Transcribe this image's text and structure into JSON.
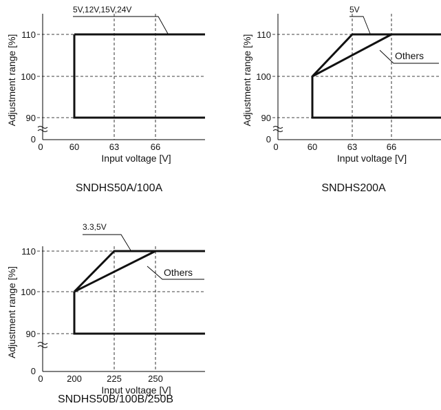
{
  "chart_data": [
    {
      "type": "line",
      "caption": "SNDHS50A/100A",
      "xlabel": "Input voltage [V]",
      "ylabel": "Adjustment range [%]",
      "x_ticks": [
        0,
        60,
        63,
        66
      ],
      "y_ticks": [
        0,
        90,
        100,
        110
      ],
      "dashed_x": [
        63,
        66
      ],
      "dashed_y": [
        90,
        100,
        110
      ],
      "series": [
        {
          "name": "5V,12V,15V,24V",
          "points": [
            [
              60,
              110
            ],
            [
              70,
              110
            ]
          ]
        }
      ],
      "boundary": [
        [
          70,
          90
        ],
        [
          60,
          90
        ],
        [
          60,
          110
        ]
      ]
    },
    {
      "type": "line",
      "caption": "SNDHS200A",
      "xlabel": "Input voltage [V]",
      "ylabel": "Adjustment range [%]",
      "x_ticks": [
        0,
        60,
        63,
        66
      ],
      "y_ticks": [
        0,
        90,
        100,
        110
      ],
      "dashed_x": [
        63,
        66
      ],
      "dashed_y": [
        90,
        100,
        110
      ],
      "series": [
        {
          "name": "5V",
          "points": [
            [
              60,
              100
            ],
            [
              63,
              110
            ],
            [
              70,
              110
            ]
          ]
        },
        {
          "name": "Others",
          "points": [
            [
              60,
              100
            ],
            [
              66,
              110
            ]
          ]
        }
      ],
      "boundary": [
        [
          70,
          90
        ],
        [
          60,
          90
        ],
        [
          60,
          100
        ]
      ]
    },
    {
      "type": "line",
      "caption": "SNDHS50B/100B/250B",
      "xlabel": "Input voltage [V]",
      "ylabel": "Adjustment range [%]",
      "x_ticks": [
        0,
        200,
        225,
        250
      ],
      "y_ticks": [
        0,
        90,
        100,
        110
      ],
      "dashed_x": [
        225,
        250
      ],
      "dashed_y": [
        90,
        100,
        110
      ],
      "series": [
        {
          "name": "3.3,5V",
          "points": [
            [
              200,
              100
            ],
            [
              225,
              110
            ],
            [
              280,
              110
            ]
          ]
        },
        {
          "name": "Others",
          "points": [
            [
              200,
              100
            ],
            [
              250,
              110
            ]
          ]
        }
      ],
      "boundary": [
        [
          280,
          90
        ],
        [
          200,
          90
        ],
        [
          200,
          100
        ]
      ]
    }
  ]
}
